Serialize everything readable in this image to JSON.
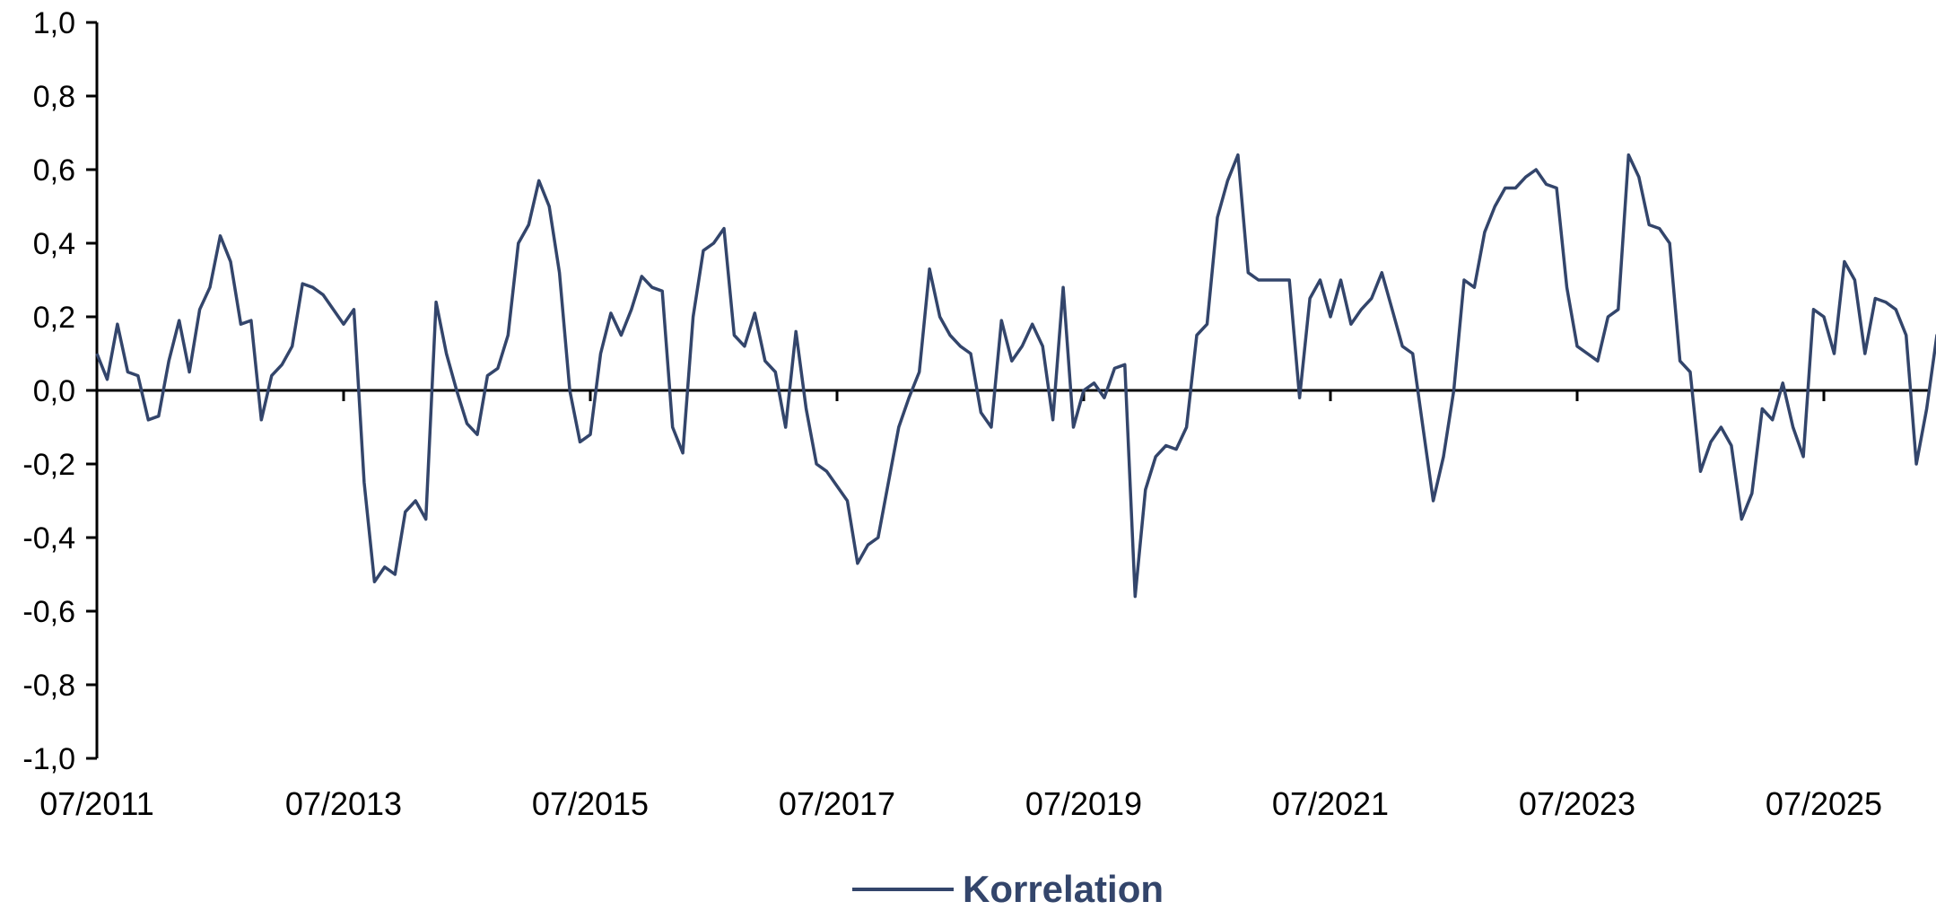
{
  "chart_data": {
    "type": "line",
    "title": "",
    "xlabel": "",
    "ylabel": "",
    "x_range": [
      "2011-07",
      "2026-10"
    ],
    "ylim": [
      -1.0,
      1.0
    ],
    "y_ticks": [
      "1,0",
      "0,8",
      "0,6",
      "0,4",
      "0,2",
      "0,0",
      "-0,2",
      "-0,4",
      "-0,6",
      "-0,8",
      "-1,0"
    ],
    "y_tick_values": [
      1.0,
      0.8,
      0.6,
      0.4,
      0.2,
      0.0,
      -0.2,
      -0.4,
      -0.6,
      -0.8,
      -1.0
    ],
    "x_ticks": [
      "07/2011",
      "07/2013",
      "07/2015",
      "07/2017",
      "07/2019",
      "07/2021",
      "07/2023",
      "07/2025"
    ],
    "x_tick_values": [
      "2011-07",
      "2013-07",
      "2015-07",
      "2017-07",
      "2019-07",
      "2021-07",
      "2023-07",
      "2025-07"
    ],
    "grid": false,
    "legend": "bottom-center",
    "series": [
      {
        "name": "Korrelation",
        "color": "#33456b",
        "points": [
          [
            "2011-07",
            0.1
          ],
          [
            "2011-08",
            0.03
          ],
          [
            "2011-09",
            0.18
          ],
          [
            "2011-10",
            0.05
          ],
          [
            "2011-11",
            0.04
          ],
          [
            "2011-12",
            -0.08
          ],
          [
            "2012-01",
            -0.07
          ],
          [
            "2012-02",
            0.08
          ],
          [
            "2012-03",
            0.19
          ],
          [
            "2012-04",
            0.05
          ],
          [
            "2012-05",
            0.22
          ],
          [
            "2012-06",
            0.28
          ],
          [
            "2012-07",
            0.42
          ],
          [
            "2012-08",
            0.35
          ],
          [
            "2012-09",
            0.18
          ],
          [
            "2012-10",
            0.19
          ],
          [
            "2012-11",
            -0.08
          ],
          [
            "2012-12",
            0.04
          ],
          [
            "2013-01",
            0.07
          ],
          [
            "2013-02",
            0.12
          ],
          [
            "2013-03",
            0.29
          ],
          [
            "2013-04",
            0.28
          ],
          [
            "2013-05",
            0.26
          ],
          [
            "2013-06",
            0.22
          ],
          [
            "2013-07",
            0.18
          ],
          [
            "2013-08",
            0.22
          ],
          [
            "2013-09",
            -0.25
          ],
          [
            "2013-10",
            -0.52
          ],
          [
            "2013-11",
            -0.48
          ],
          [
            "2013-12",
            -0.5
          ],
          [
            "2014-01",
            -0.33
          ],
          [
            "2014-02",
            -0.3
          ],
          [
            "2014-03",
            -0.35
          ],
          [
            "2014-04",
            0.24
          ],
          [
            "2014-05",
            0.1
          ],
          [
            "2014-06",
            0.0
          ],
          [
            "2014-07",
            -0.09
          ],
          [
            "2014-08",
            -0.12
          ],
          [
            "2014-09",
            0.04
          ],
          [
            "2014-10",
            0.06
          ],
          [
            "2014-11",
            0.15
          ],
          [
            "2014-12",
            0.4
          ],
          [
            "2015-01",
            0.45
          ],
          [
            "2015-02",
            0.57
          ],
          [
            "2015-03",
            0.5
          ],
          [
            "2015-04",
            0.32
          ],
          [
            "2015-05",
            0.0
          ],
          [
            "2015-06",
            -0.14
          ],
          [
            "2015-07",
            -0.12
          ],
          [
            "2015-08",
            0.1
          ],
          [
            "2015-09",
            0.21
          ],
          [
            "2015-10",
            0.15
          ],
          [
            "2015-11",
            0.22
          ],
          [
            "2015-12",
            0.31
          ],
          [
            "2016-01",
            0.28
          ],
          [
            "2016-02",
            0.27
          ],
          [
            "2016-03",
            -0.1
          ],
          [
            "2016-04",
            -0.17
          ],
          [
            "2016-05",
            0.2
          ],
          [
            "2016-06",
            0.38
          ],
          [
            "2016-07",
            0.4
          ],
          [
            "2016-08",
            0.44
          ],
          [
            "2016-09",
            0.15
          ],
          [
            "2016-10",
            0.12
          ],
          [
            "2016-11",
            0.21
          ],
          [
            "2016-12",
            0.08
          ],
          [
            "2017-01",
            0.05
          ],
          [
            "2017-02",
            -0.1
          ],
          [
            "2017-03",
            0.16
          ],
          [
            "2017-04",
            -0.05
          ],
          [
            "2017-05",
            -0.2
          ],
          [
            "2017-06",
            -0.22
          ],
          [
            "2017-07",
            -0.26
          ],
          [
            "2017-08",
            -0.3
          ],
          [
            "2017-09",
            -0.47
          ],
          [
            "2017-10",
            -0.42
          ],
          [
            "2017-11",
            -0.4
          ],
          [
            "2017-12",
            -0.25
          ],
          [
            "2018-01",
            -0.1
          ],
          [
            "2018-02",
            -0.02
          ],
          [
            "2018-03",
            0.05
          ],
          [
            "2018-04",
            0.33
          ],
          [
            "2018-05",
            0.2
          ],
          [
            "2018-06",
            0.15
          ],
          [
            "2018-07",
            0.12
          ],
          [
            "2018-08",
            0.1
          ],
          [
            "2018-09",
            -0.06
          ],
          [
            "2018-10",
            -0.1
          ],
          [
            "2018-11",
            0.19
          ],
          [
            "2018-12",
            0.08
          ],
          [
            "2019-01",
            0.12
          ],
          [
            "2019-02",
            0.18
          ],
          [
            "2019-03",
            0.12
          ],
          [
            "2019-04",
            -0.08
          ],
          [
            "2019-05",
            0.28
          ],
          [
            "2019-06",
            -0.1
          ],
          [
            "2019-07",
            0.0
          ],
          [
            "2019-08",
            0.02
          ],
          [
            "2019-09",
            -0.02
          ],
          [
            "2019-10",
            0.06
          ],
          [
            "2019-11",
            0.07
          ],
          [
            "2019-12",
            -0.56
          ],
          [
            "2020-01",
            -0.27
          ],
          [
            "2020-02",
            -0.18
          ],
          [
            "2020-03",
            -0.15
          ],
          [
            "2020-04",
            -0.16
          ],
          [
            "2020-05",
            -0.1
          ],
          [
            "2020-06",
            0.15
          ],
          [
            "2020-07",
            0.18
          ],
          [
            "2020-08",
            0.47
          ],
          [
            "2020-09",
            0.57
          ],
          [
            "2020-10",
            0.64
          ],
          [
            "2020-11",
            0.32
          ],
          [
            "2020-12",
            0.3
          ],
          [
            "2021-01",
            0.3
          ],
          [
            "2021-02",
            0.3
          ],
          [
            "2021-03",
            0.3
          ],
          [
            "2021-04",
            -0.02
          ],
          [
            "2021-05",
            0.25
          ],
          [
            "2021-06",
            0.3
          ],
          [
            "2021-07",
            0.2
          ],
          [
            "2021-08",
            0.3
          ],
          [
            "2021-09",
            0.18
          ],
          [
            "2021-10",
            0.22
          ],
          [
            "2021-11",
            0.25
          ],
          [
            "2021-12",
            0.32
          ],
          [
            "2022-01",
            0.22
          ],
          [
            "2022-02",
            0.12
          ],
          [
            "2022-03",
            0.1
          ],
          [
            "2022-04",
            -0.1
          ],
          [
            "2022-05",
            -0.3
          ],
          [
            "2022-06",
            -0.18
          ],
          [
            "2022-07",
            0.0
          ],
          [
            "2022-08",
            0.3
          ],
          [
            "2022-09",
            0.28
          ],
          [
            "2022-10",
            0.43
          ],
          [
            "2022-11",
            0.5
          ],
          [
            "2022-12",
            0.55
          ],
          [
            "2023-01",
            0.55
          ],
          [
            "2023-02",
            0.58
          ],
          [
            "2023-03",
            0.6
          ],
          [
            "2023-04",
            0.56
          ],
          [
            "2023-05",
            0.55
          ],
          [
            "2023-06",
            0.28
          ],
          [
            "2023-07",
            0.12
          ],
          [
            "2023-08",
            0.1
          ],
          [
            "2023-09",
            0.08
          ],
          [
            "2023-10",
            0.2
          ],
          [
            "2023-11",
            0.22
          ],
          [
            "2023-12",
            0.64
          ],
          [
            "2024-01",
            0.58
          ],
          [
            "2024-02",
            0.45
          ],
          [
            "2024-03",
            0.44
          ],
          [
            "2024-04",
            0.4
          ],
          [
            "2024-05",
            0.08
          ],
          [
            "2024-06",
            0.05
          ],
          [
            "2024-07",
            -0.22
          ],
          [
            "2024-08",
            -0.14
          ],
          [
            "2024-09",
            -0.1
          ],
          [
            "2024-10",
            -0.15
          ],
          [
            "2024-11",
            -0.35
          ],
          [
            "2024-12",
            -0.28
          ],
          [
            "2025-01",
            -0.05
          ],
          [
            "2025-02",
            -0.08
          ],
          [
            "2025-03",
            0.02
          ],
          [
            "2025-04",
            -0.1
          ],
          [
            "2025-05",
            -0.18
          ],
          [
            "2025-06",
            0.22
          ],
          [
            "2025-07",
            0.2
          ],
          [
            "2025-08",
            0.1
          ],
          [
            "2025-09",
            0.35
          ],
          [
            "2025-10",
            0.3
          ],
          [
            "2025-11",
            0.1
          ],
          [
            "2025-12",
            0.25
          ],
          [
            "2026-01",
            0.24
          ],
          [
            "2026-02",
            0.22
          ],
          [
            "2026-03",
            0.15
          ],
          [
            "2026-04",
            -0.2
          ],
          [
            "2026-05",
            -0.05
          ],
          [
            "2026-06",
            0.15
          ],
          [
            "2026-07",
            0.0
          ],
          [
            "2026-08",
            0.25
          ],
          [
            "2026-09",
            0.38
          ]
        ]
      }
    ]
  }
}
